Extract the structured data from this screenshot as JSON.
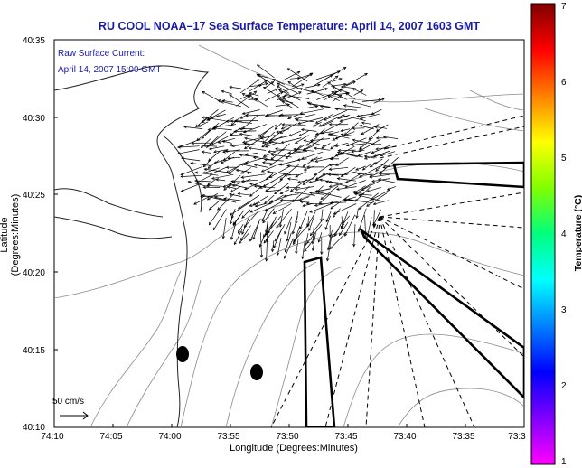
{
  "map": {
    "title": "RU COOL  NOAA–17  Sea Surface Temperature:  April 14, 2007 1603 GMT",
    "legend_line1": "Raw Surface Current:",
    "legend_line2": "April 14, 2007 15:00 GMT",
    "scale_label": "50 cm/s",
    "xlabel": "Longitude (Degrees:Minutes)",
    "ylabel": "Latitude (Degrees:Minutes)",
    "x_ticks": [
      "74:10",
      "74:05",
      "74:00",
      "73:55",
      "73:50",
      "73:45",
      "73:40",
      "73:35",
      "73:3"
    ],
    "y_ticks": [
      "40:35",
      "40:30",
      "40:25",
      "40:20",
      "40:15",
      "40:10"
    ]
  },
  "colorbar": {
    "label": "Temperature (°C)",
    "ticks": [
      "7",
      "6",
      "5",
      "4",
      "3",
      "2",
      "1"
    ],
    "colors": [
      "#ff00ff",
      "#8000ff",
      "#0000ff",
      "#0080ff",
      "#00ffff",
      "#00ff80",
      "#80ff00",
      "#ffff00",
      "#ff8000",
      "#ff0000",
      "#800000"
    ]
  }
}
